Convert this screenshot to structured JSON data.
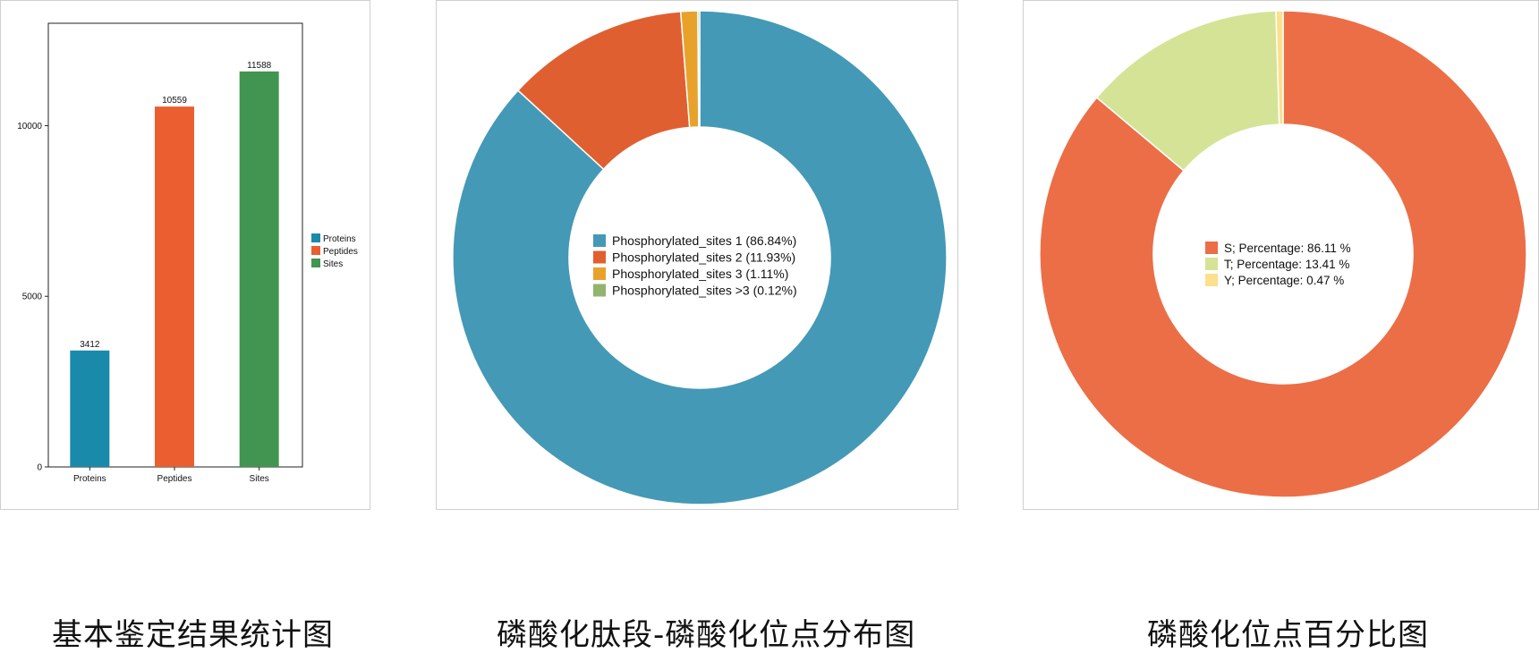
{
  "chart_data": [
    {
      "type": "bar",
      "categories": [
        "Proteins",
        "Peptides",
        "Sites"
      ],
      "values": [
        3412,
        10559,
        11588
      ],
      "colors": [
        "#1a8aab",
        "#eb5e30",
        "#429550"
      ],
      "yticks": [
        0,
        5000,
        10000
      ],
      "ylim": [
        0,
        13000
      ],
      "legend": [
        "Proteins",
        "Peptides",
        "Sites"
      ],
      "legend_position": "right",
      "grid": false
    },
    {
      "type": "pie",
      "donut": true,
      "labels": [
        "Phosphorylated_sites 1 (86.84%)",
        "Phosphorylated_sites 2 (11.93%)",
        "Phosphorylated_sites 3 (1.11%)",
        "Phosphorylated_sites >3 (0.12%)"
      ],
      "values": [
        86.84,
        11.93,
        1.11,
        0.12
      ],
      "colors": [
        "#4499b6",
        "#e05f31",
        "#e8a22b",
        "#92b46c"
      ],
      "legend_position": "center"
    },
    {
      "type": "pie",
      "donut": true,
      "labels": [
        "S;  Percentage: 86.11 %",
        "T;  Percentage: 13.41 %",
        "Y;  Percentage: 0.47 %"
      ],
      "values": [
        86.11,
        13.41,
        0.47
      ],
      "colors": [
        "#ec6e46",
        "#d4e396",
        "#fbe08e"
      ],
      "legend_position": "center"
    }
  ],
  "captions": [
    "基本鉴定结果统计图",
    "磷酸化肽段-磷酸化位点分布图",
    "磷酸化位点百分比图"
  ]
}
